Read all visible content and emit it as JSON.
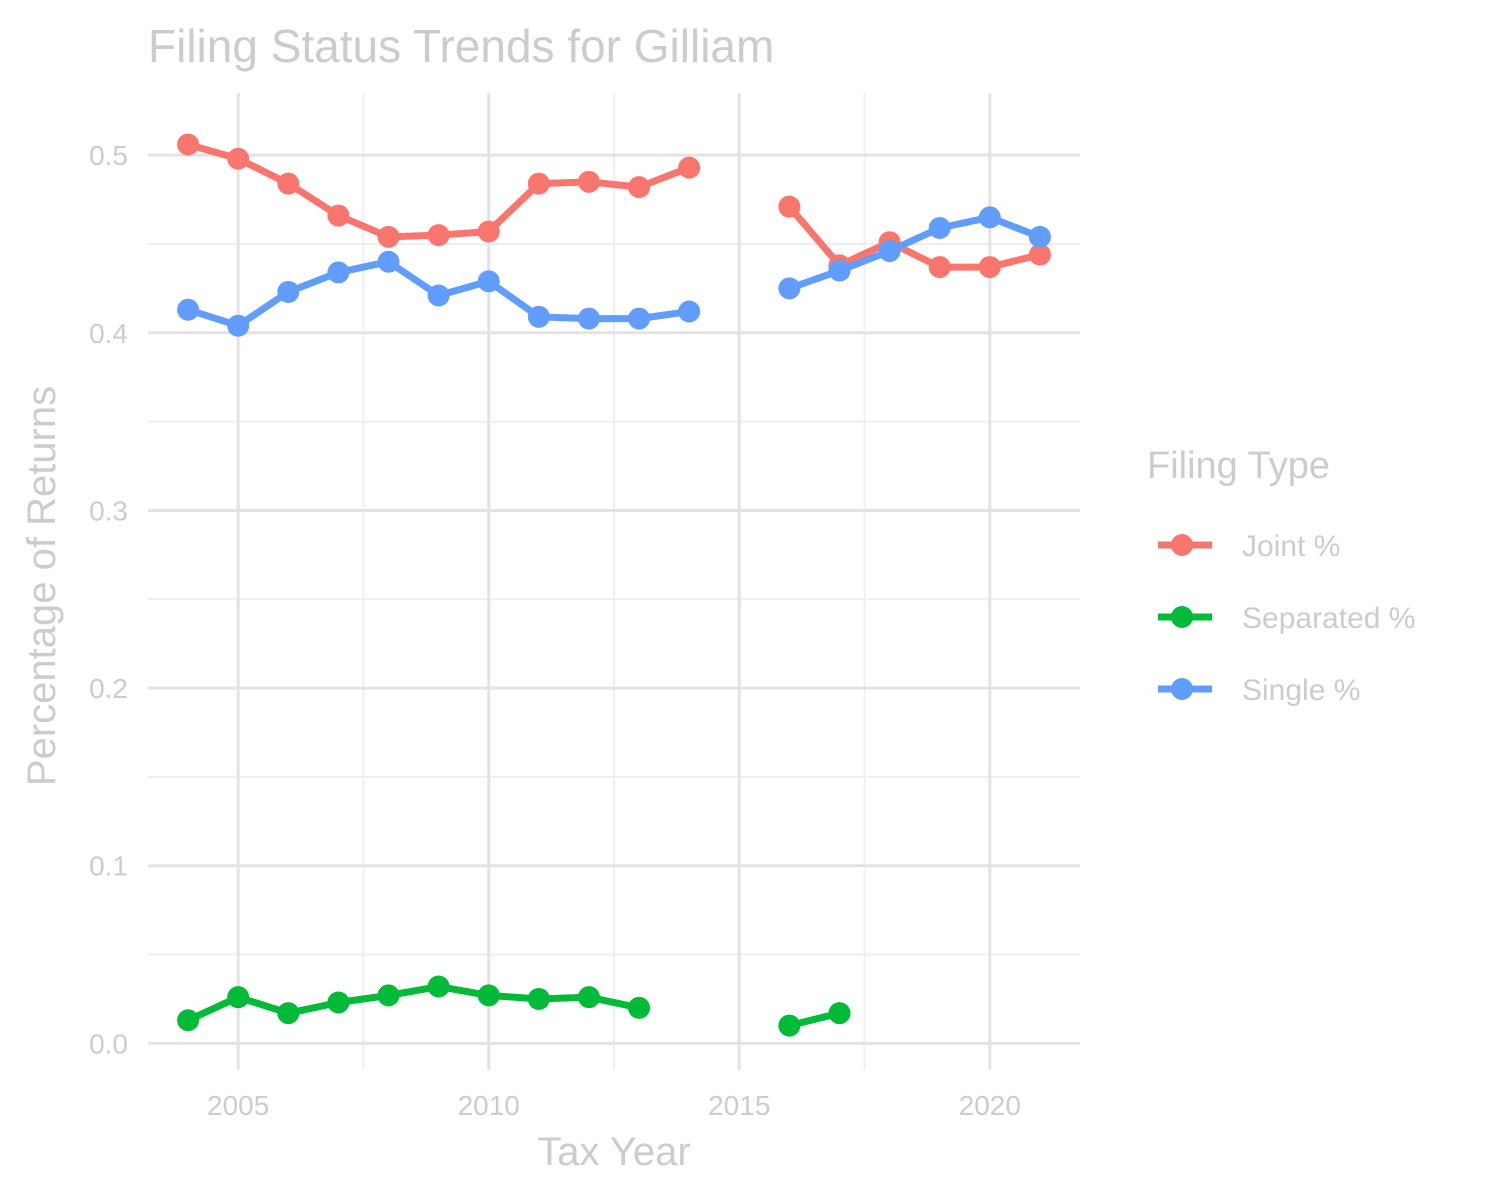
{
  "chart_data": {
    "type": "line",
    "title": "Filing Status Trends for Gilliam",
    "xlabel": "Tax Year",
    "ylabel": "Percentage of Returns",
    "xlim": [
      2003.2,
      2021.8
    ],
    "ylim": [
      -0.015,
      0.535
    ],
    "x_ticks": [
      2005,
      2010,
      2015,
      2020
    ],
    "x_tick_labels": [
      "2005",
      "2010",
      "2015",
      "2020"
    ],
    "y_ticks": [
      0.0,
      0.1,
      0.2,
      0.3,
      0.4,
      0.5
    ],
    "y_tick_labels": [
      "0.0",
      "0.1",
      "0.2",
      "0.3",
      "0.4",
      "0.5"
    ],
    "grid": true,
    "legend": {
      "title": "Filing Type",
      "position": "right"
    },
    "series": [
      {
        "name": "Joint %",
        "color": "#F8766D",
        "x": [
          2004,
          2005,
          2006,
          2007,
          2008,
          2009,
          2010,
          2011,
          2012,
          2013,
          2014,
          2015,
          2016,
          2017,
          2018,
          2019,
          2020,
          2021
        ],
        "values": [
          0.506,
          0.498,
          0.484,
          0.466,
          0.454,
          0.455,
          0.457,
          0.484,
          0.485,
          0.482,
          0.493,
          null,
          0.471,
          0.438,
          0.451,
          0.437,
          0.437,
          0.444
        ]
      },
      {
        "name": "Separated %",
        "color": "#00BA38",
        "x": [
          2004,
          2005,
          2006,
          2007,
          2008,
          2009,
          2010,
          2011,
          2012,
          2013,
          2014,
          2015,
          2016,
          2017,
          2018,
          2019,
          2020,
          2021
        ],
        "values": [
          0.013,
          0.026,
          0.017,
          0.023,
          0.027,
          0.032,
          0.027,
          0.025,
          0.026,
          0.02,
          null,
          null,
          0.01,
          0.017,
          null,
          null,
          null,
          null
        ]
      },
      {
        "name": "Single %",
        "color": "#619CFF",
        "x": [
          2004,
          2005,
          2006,
          2007,
          2008,
          2009,
          2010,
          2011,
          2012,
          2013,
          2014,
          2015,
          2016,
          2017,
          2018,
          2019,
          2020,
          2021
        ],
        "values": [
          0.413,
          0.404,
          0.423,
          0.434,
          0.44,
          0.421,
          0.429,
          0.409,
          0.408,
          0.408,
          0.412,
          null,
          0.425,
          0.435,
          0.446,
          0.459,
          0.465,
          0.454
        ]
      }
    ]
  }
}
